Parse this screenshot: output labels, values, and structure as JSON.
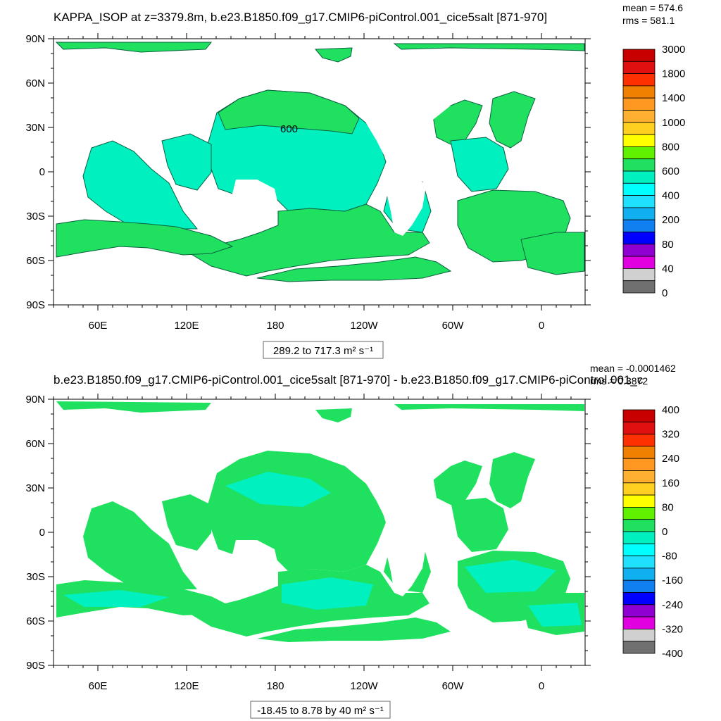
{
  "chart_data": [
    {
      "type": "heatmap",
      "title": "KAPPA_ISOP at z=3379.8m, b.e23.B1850.f09_g17.CMIP6-piControl.001_cice5salt [871-970]",
      "stats": {
        "mean": "mean = 574.6",
        "rms": "rms = 581.1"
      },
      "lat_ticks": [
        "90N",
        "60N",
        "30N",
        "0",
        "30S",
        "60S",
        "90S"
      ],
      "lon_ticks": [
        "60E",
        "120E",
        "180",
        "120W",
        "60W",
        "0"
      ],
      "colorbar_labels": [
        "3000",
        "1800",
        "1400",
        "1000",
        "800",
        "600",
        "400",
        "200",
        "80",
        "40",
        "0"
      ],
      "colorbar_colors": [
        "#c80000",
        "#e01010",
        "#ff3000",
        "#f08000",
        "#ff9820",
        "#ffb030",
        "#ffd020",
        "#ffff00",
        "#60f000",
        "#20e060",
        "#00f0c0",
        "#00ffff",
        "#20e0ff",
        "#10b0f0",
        "#1080f0",
        "#0000ff",
        "#9000d0",
        "#e000e0",
        "#d0d0d0",
        "#707070"
      ],
      "range_note": "289.2 to 717.3 m² s⁻¹",
      "contour_label": "600",
      "palette": {
        "dominant": "#20e060",
        "secondary": "#00f0c0",
        "edge": "#20c0ff"
      }
    },
    {
      "type": "heatmap",
      "title": "b.e23.B1850.f09_g17.CMIP6-piControl.001_cice5salt [871-970] - b.e23.B1850.f09_g17.CMIP6-piControl.001_c",
      "stats": {
        "mean": "mean = -0.0001462",
        "rms": "rms = 0.3872"
      },
      "lat_ticks": [
        "90N",
        "60N",
        "30N",
        "0",
        "30S",
        "60S",
        "90S"
      ],
      "lon_ticks": [
        "60E",
        "120E",
        "180",
        "120W",
        "60W",
        "0"
      ],
      "colorbar_labels": [
        "400",
        "320",
        "240",
        "160",
        "80",
        "0",
        "-80",
        "-160",
        "-240",
        "-320",
        "-400"
      ],
      "colorbar_colors": [
        "#c80000",
        "#e01010",
        "#ff3000",
        "#f08000",
        "#ff9820",
        "#ffb030",
        "#ffd020",
        "#ffff00",
        "#60f000",
        "#20e060",
        "#00f0c0",
        "#00ffff",
        "#20e0ff",
        "#10b0f0",
        "#1080f0",
        "#0000ff",
        "#9000d0",
        "#e000e0",
        "#d0d0d0",
        "#707070"
      ],
      "range_note": "-18.45 to 8.78 by 40 m² s⁻¹",
      "palette": {
        "dominant": "#20e060",
        "secondary": "#00f0c0"
      }
    }
  ]
}
